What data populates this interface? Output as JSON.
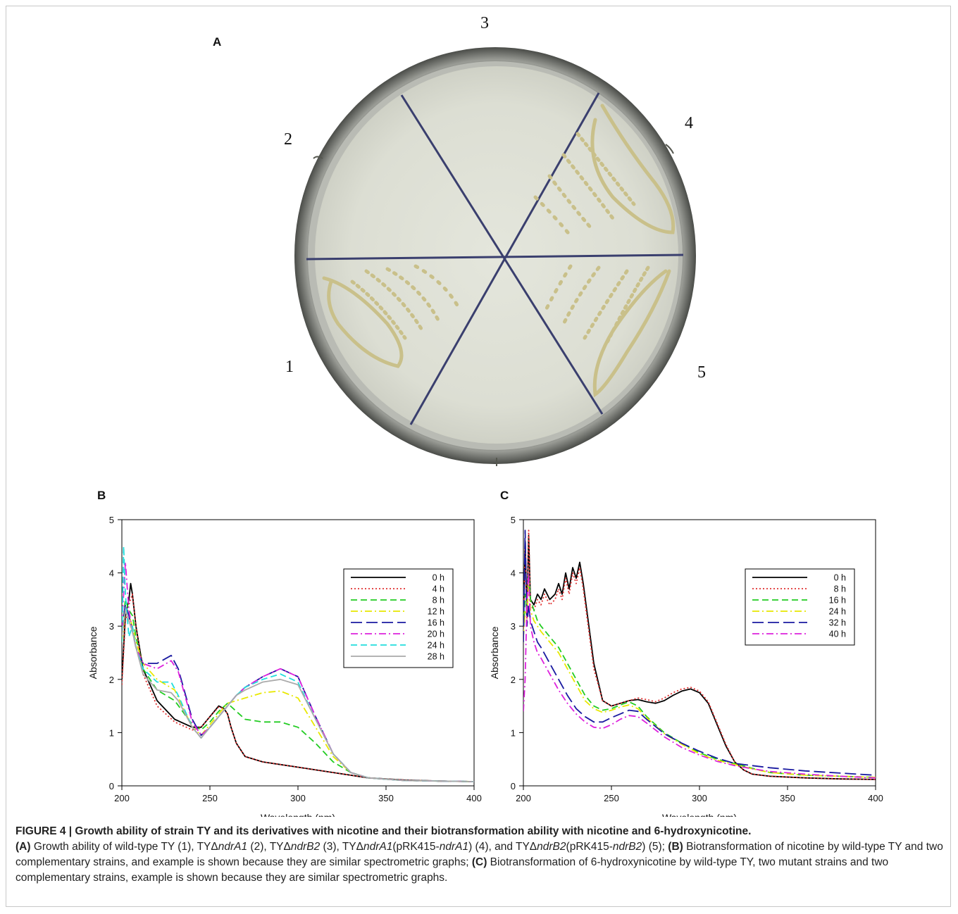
{
  "panel_a": {
    "letter": "A",
    "sector_labels": [
      "1",
      "2",
      "3",
      "4",
      "5"
    ]
  },
  "chart_data": [
    {
      "panel": "B",
      "type": "line",
      "xlabel": "Wavelength (nm)",
      "ylabel": "Absorbance",
      "xlim": [
        200,
        400
      ],
      "ylim": [
        0,
        5
      ],
      "xticks": [
        200,
        250,
        300,
        350,
        400
      ],
      "yticks": [
        0,
        1,
        2,
        3,
        4,
        5
      ],
      "legend_position": "top-right",
      "series": [
        {
          "name": "0 h",
          "color": "#000000",
          "dash": "solid",
          "x": [
            200,
            202,
            204,
            205,
            206,
            208,
            212,
            220,
            230,
            240,
            245,
            250,
            255,
            258,
            260,
            262,
            265,
            268,
            270,
            280,
            300,
            320,
            340,
            360,
            380,
            400
          ],
          "y": [
            2.0,
            3.2,
            3.5,
            3.8,
            3.6,
            3.0,
            2.2,
            1.6,
            1.25,
            1.1,
            1.1,
            1.3,
            1.5,
            1.45,
            1.35,
            1.1,
            0.8,
            0.65,
            0.55,
            0.45,
            0.35,
            0.25,
            0.15,
            0.11,
            0.09,
            0.08
          ]
        },
        {
          "name": "4 h",
          "color": "#e03030",
          "dash": "dotted",
          "x": [
            200,
            202,
            204,
            206,
            208,
            212,
            220,
            230,
            240,
            245,
            250,
            255,
            258,
            260,
            262,
            265,
            268,
            270,
            280,
            300,
            320,
            340,
            360,
            380,
            400
          ],
          "y": [
            1.9,
            3.1,
            3.4,
            3.6,
            3.0,
            2.1,
            1.5,
            1.2,
            1.05,
            1.1,
            1.3,
            1.48,
            1.45,
            1.35,
            1.1,
            0.8,
            0.65,
            0.55,
            0.45,
            0.35,
            0.25,
            0.15,
            0.11,
            0.09,
            0.08
          ]
        },
        {
          "name": "8 h",
          "color": "#22cc22",
          "dash": "dashed",
          "x": [
            200,
            202,
            204,
            206,
            208,
            212,
            220,
            230,
            240,
            245,
            250,
            255,
            260,
            265,
            270,
            280,
            290,
            300,
            310,
            320,
            330,
            340,
            360,
            380,
            400
          ],
          "y": [
            2.8,
            3.5,
            3.3,
            3.2,
            2.8,
            2.2,
            1.8,
            1.6,
            1.15,
            1.05,
            1.2,
            1.4,
            1.55,
            1.4,
            1.25,
            1.2,
            1.2,
            1.1,
            0.8,
            0.45,
            0.25,
            0.15,
            0.1,
            0.09,
            0.08
          ]
        },
        {
          "name": "12 h",
          "color": "#e8e800",
          "dash": "dashdot",
          "x": [
            200,
            202,
            204,
            206,
            208,
            212,
            220,
            230,
            240,
            245,
            250,
            255,
            260,
            265,
            270,
            280,
            290,
            300,
            310,
            320,
            330,
            340,
            360,
            380,
            400
          ],
          "y": [
            2.7,
            3.3,
            3.2,
            3.0,
            2.7,
            2.3,
            2.0,
            1.8,
            1.1,
            0.95,
            1.15,
            1.35,
            1.55,
            1.6,
            1.65,
            1.75,
            1.78,
            1.65,
            1.1,
            0.55,
            0.25,
            0.15,
            0.1,
            0.09,
            0.08
          ]
        },
        {
          "name": "16 h",
          "color": "#1a1aa0",
          "dash": "longdash",
          "x": [
            200,
            202,
            204,
            206,
            208,
            212,
            220,
            228,
            232,
            240,
            245,
            250,
            255,
            260,
            265,
            270,
            280,
            290,
            300,
            310,
            320,
            330,
            340,
            360,
            380,
            400
          ],
          "y": [
            2.9,
            3.4,
            3.2,
            2.9,
            2.6,
            2.3,
            2.3,
            2.45,
            2.2,
            1.25,
            0.95,
            1.1,
            1.3,
            1.5,
            1.7,
            1.85,
            2.05,
            2.2,
            2.05,
            1.3,
            0.6,
            0.25,
            0.15,
            0.1,
            0.09,
            0.08
          ]
        },
        {
          "name": "20 h",
          "color": "#dd22dd",
          "dash": "dashdot",
          "x": [
            200,
            202,
            204,
            206,
            208,
            212,
            220,
            228,
            232,
            240,
            245,
            250,
            255,
            260,
            265,
            270,
            280,
            290,
            300,
            310,
            320,
            330,
            340,
            360,
            380,
            400
          ],
          "y": [
            3.0,
            4.2,
            3.3,
            2.9,
            2.6,
            2.3,
            2.2,
            2.35,
            2.15,
            1.2,
            0.95,
            1.1,
            1.3,
            1.5,
            1.7,
            1.85,
            2.05,
            2.2,
            2.05,
            1.3,
            0.6,
            0.25,
            0.15,
            0.1,
            0.09,
            0.08
          ]
        },
        {
          "name": "24 h",
          "color": "#22dddd",
          "dash": "dashed",
          "x": [
            200,
            201,
            202,
            204,
            206,
            208,
            212,
            220,
            228,
            232,
            240,
            245,
            250,
            255,
            260,
            265,
            270,
            280,
            290,
            300,
            310,
            320,
            330,
            340,
            360,
            380,
            400
          ],
          "y": [
            2.7,
            4.5,
            3.6,
            2.8,
            3.0,
            2.6,
            2.2,
            1.95,
            1.95,
            1.7,
            1.1,
            0.9,
            1.1,
            1.3,
            1.5,
            1.7,
            1.85,
            2.0,
            2.1,
            1.95,
            1.25,
            0.6,
            0.25,
            0.15,
            0.1,
            0.09,
            0.08
          ]
        },
        {
          "name": "28 h",
          "color": "#aaaaaa",
          "dash": "solid",
          "x": [
            200,
            202,
            204,
            206,
            208,
            212,
            220,
            228,
            232,
            240,
            245,
            250,
            255,
            260,
            265,
            270,
            280,
            290,
            300,
            310,
            320,
            330,
            340,
            360,
            380,
            400
          ],
          "y": [
            2.8,
            3.3,
            3.1,
            2.9,
            2.6,
            2.1,
            1.8,
            1.75,
            1.6,
            1.1,
            0.9,
            1.1,
            1.3,
            1.5,
            1.7,
            1.8,
            1.95,
            2.0,
            1.9,
            1.25,
            0.6,
            0.25,
            0.15,
            0.1,
            0.09,
            0.08
          ]
        }
      ]
    },
    {
      "panel": "C",
      "type": "line",
      "xlabel": "Wavelength (nm)",
      "ylabel": "Absorbance",
      "xlim": [
        200,
        400
      ],
      "ylim": [
        0,
        5
      ],
      "xticks": [
        200,
        250,
        300,
        350,
        400
      ],
      "yticks": [
        0,
        1,
        2,
        3,
        4,
        5
      ],
      "legend_position": "top-right",
      "series": [
        {
          "name": "0 h",
          "color": "#000000",
          "dash": "solid",
          "x": [
            200,
            201,
            202,
            203,
            204,
            206,
            208,
            210,
            212,
            215,
            218,
            220,
            222,
            224,
            226,
            228,
            230,
            232,
            234,
            236,
            238,
            240,
            245,
            250,
            255,
            260,
            265,
            270,
            275,
            280,
            285,
            290,
            295,
            300,
            305,
            310,
            315,
            320,
            325,
            330,
            340,
            360,
            380,
            400
          ],
          "y": [
            3.0,
            4.6,
            3.2,
            4.7,
            3.5,
            3.4,
            3.6,
            3.5,
            3.7,
            3.5,
            3.6,
            3.8,
            3.6,
            4.0,
            3.7,
            4.1,
            3.9,
            4.2,
            3.8,
            3.3,
            2.8,
            2.3,
            1.6,
            1.5,
            1.55,
            1.6,
            1.62,
            1.58,
            1.55,
            1.6,
            1.7,
            1.78,
            1.82,
            1.75,
            1.55,
            1.15,
            0.75,
            0.45,
            0.3,
            0.22,
            0.18,
            0.15,
            0.13,
            0.12
          ]
        },
        {
          "name": "8 h",
          "color": "#e03030",
          "dash": "dotted",
          "x": [
            200,
            201,
            202,
            203,
            204,
            206,
            208,
            210,
            212,
            215,
            218,
            220,
            222,
            224,
            226,
            228,
            230,
            232,
            234,
            236,
            238,
            240,
            245,
            250,
            255,
            260,
            265,
            270,
            275,
            280,
            285,
            290,
            295,
            300,
            305,
            310,
            315,
            320,
            325,
            330,
            340,
            360,
            380,
            400
          ],
          "y": [
            2.9,
            4.5,
            3.1,
            4.8,
            3.4,
            3.3,
            3.5,
            3.4,
            3.6,
            3.4,
            3.5,
            3.7,
            3.5,
            3.9,
            3.6,
            4.0,
            3.8,
            4.1,
            3.7,
            3.2,
            2.7,
            2.2,
            1.6,
            1.5,
            1.55,
            1.6,
            1.65,
            1.62,
            1.58,
            1.65,
            1.75,
            1.82,
            1.85,
            1.78,
            1.58,
            1.18,
            0.78,
            0.45,
            0.3,
            0.22,
            0.18,
            0.15,
            0.13,
            0.12
          ]
        },
        {
          "name": "16 h",
          "color": "#22cc22",
          "dash": "dashed",
          "x": [
            200,
            201,
            202,
            203,
            204,
            206,
            208,
            210,
            215,
            220,
            225,
            230,
            235,
            240,
            245,
            250,
            255,
            260,
            265,
            270,
            280,
            290,
            300,
            310,
            320,
            330,
            340,
            360,
            380,
            400
          ],
          "y": [
            2.8,
            3.6,
            3.4,
            4.0,
            3.5,
            3.3,
            3.1,
            3.0,
            2.8,
            2.6,
            2.3,
            2.0,
            1.7,
            1.5,
            1.42,
            1.45,
            1.52,
            1.58,
            1.5,
            1.3,
            1.0,
            0.8,
            0.62,
            0.5,
            0.42,
            0.33,
            0.25,
            0.2,
            0.18,
            0.16
          ]
        },
        {
          "name": "24 h",
          "color": "#e8e800",
          "dash": "dashdot",
          "x": [
            200,
            201,
            202,
            203,
            204,
            206,
            208,
            210,
            215,
            220,
            225,
            230,
            235,
            240,
            245,
            250,
            255,
            260,
            265,
            270,
            280,
            290,
            300,
            310,
            320,
            330,
            340,
            360,
            380,
            400
          ],
          "y": [
            2.8,
            3.3,
            3.2,
            3.8,
            3.3,
            3.1,
            3.0,
            2.9,
            2.7,
            2.5,
            2.2,
            1.9,
            1.6,
            1.45,
            1.38,
            1.42,
            1.48,
            1.52,
            1.45,
            1.28,
            0.98,
            0.78,
            0.6,
            0.48,
            0.4,
            0.32,
            0.25,
            0.2,
            0.18,
            0.16
          ]
        },
        {
          "name": "32 h",
          "color": "#1a1aa0",
          "dash": "longdash",
          "x": [
            200,
            201,
            202,
            203,
            204,
            206,
            208,
            210,
            215,
            220,
            225,
            230,
            235,
            240,
            245,
            250,
            255,
            260,
            265,
            270,
            280,
            290,
            300,
            310,
            320,
            330,
            340,
            360,
            380,
            400
          ],
          "y": [
            2.7,
            4.8,
            3.0,
            3.4,
            3.1,
            2.9,
            2.7,
            2.6,
            2.3,
            2.0,
            1.7,
            1.45,
            1.3,
            1.2,
            1.2,
            1.28,
            1.35,
            1.42,
            1.4,
            1.25,
            0.98,
            0.8,
            0.65,
            0.52,
            0.42,
            0.38,
            0.34,
            0.28,
            0.24,
            0.2
          ]
        },
        {
          "name": "40 h",
          "color": "#dd22dd",
          "dash": "dashdot",
          "x": [
            200,
            201,
            202,
            203,
            204,
            206,
            208,
            210,
            215,
            220,
            225,
            230,
            235,
            240,
            245,
            250,
            255,
            260,
            265,
            270,
            280,
            290,
            300,
            310,
            320,
            330,
            340,
            360,
            380,
            400
          ],
          "y": [
            1.4,
            2.0,
            3.4,
            4.0,
            3.0,
            2.7,
            2.5,
            2.4,
            2.1,
            1.8,
            1.55,
            1.35,
            1.2,
            1.1,
            1.08,
            1.15,
            1.25,
            1.32,
            1.3,
            1.18,
            0.92,
            0.72,
            0.58,
            0.46,
            0.38,
            0.32,
            0.27,
            0.22,
            0.18,
            0.15
          ]
        }
      ]
    }
  ],
  "caption": {
    "title": "FIGURE 4 | Growth ability of strain TY and its derivatives with nicotine and their biotransformation ability with nicotine and 6-hydroxynicotine.",
    "a_label": "(A)",
    "a_text_1": " Growth ability of wild-type TY (1), TYΔ",
    "a_gene_1": "ndrA1",
    "a_text_2": " (2), TYΔ",
    "a_gene_2": "ndrB2",
    "a_text_3": " (3), TYΔ",
    "a_gene_3": "ndrA1",
    "a_text_4": "(pRK415-",
    "a_gene_4": "ndrA1",
    "a_text_5": ") (4), and TYΔ",
    "a_gene_5": "ndrB2",
    "a_text_6": "(pRK415-",
    "a_gene_6": "ndrB2",
    "a_text_7": ") (5); ",
    "b_label": "(B)",
    "b_text": " Biotransformation of nicotine by wild-type TY and two complementary strains, and example is shown because they are similar spectrometric graphs; ",
    "c_label": "(C)",
    "c_text": " Biotransformation of 6-hydroxynicotine by wild-type TY, two mutant strains and two complementary strains, example is shown because they are similar spectrometric graphs."
  }
}
